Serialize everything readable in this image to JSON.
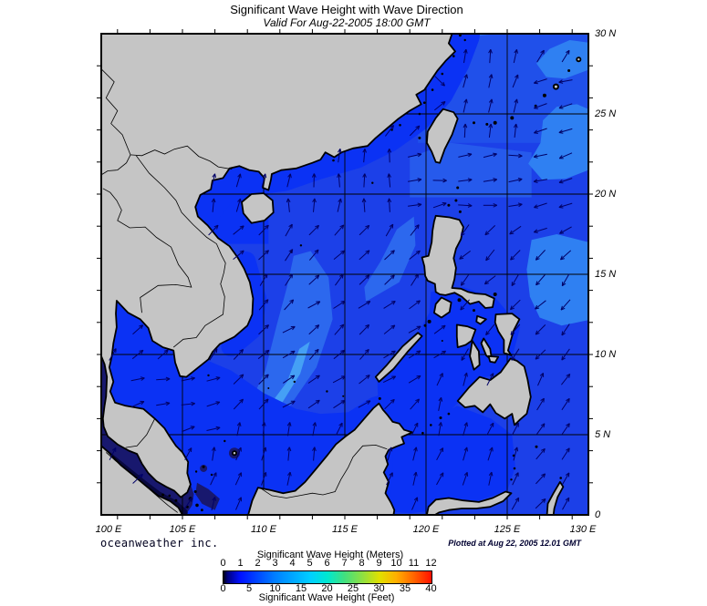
{
  "title": "Significant Wave Height with Wave Direction",
  "subtitle": "Valid For Aug-22-2005 18:00 GMT",
  "branding": "oceanweather inc.",
  "plotted_note": "Plotted at Aug 22, 2005 12.01 GMT",
  "map": {
    "lon_labels": [
      "100 E",
      "105 E",
      "110 E",
      "115 E",
      "120 E",
      "125 E",
      "130 E"
    ],
    "lat_labels": [
      "30 N",
      "25 N",
      "20 N",
      "15 N",
      "10 N",
      "5 N",
      "0"
    ],
    "extent": {
      "lon_min": 100,
      "lon_max": 130,
      "lat_min": 0,
      "lat_max": 30
    },
    "grid_interval_deg": 5,
    "colors": {
      "land": "#c5c5c5",
      "coast": "#000000",
      "border": "#000000",
      "ocean_base": "#1c40e8",
      "ocean_ne": "#2050ea",
      "ocean_strait": "#265aec",
      "wave_bright": "#0b32f4",
      "wave_light": "#2c68ee",
      "wave_lighter": "#2f80f2",
      "wave_streak": "#45a0f5",
      "calm_navy": "#18186e",
      "calm_dark": "#08083e",
      "arrow": "#000066"
    }
  },
  "legend": {
    "meters_label": "Significant Wave Height (Meters)",
    "feet_label": "Significant Wave Height (Feet)",
    "meters_ticks": [
      0,
      1,
      2,
      3,
      4,
      5,
      6,
      7,
      8,
      9,
      10,
      11,
      12
    ],
    "feet_ticks": [
      0,
      5,
      10,
      15,
      20,
      25,
      30,
      35,
      40
    ],
    "gradient": [
      [
        0.0,
        "#000010"
      ],
      [
        0.02,
        "#000080"
      ],
      [
        0.08,
        "#0010ff"
      ],
      [
        0.25,
        "#0080ff"
      ],
      [
        0.42,
        "#00d0ff"
      ],
      [
        0.5,
        "#00e8d0"
      ],
      [
        0.58,
        "#40e080"
      ],
      [
        0.67,
        "#90e040"
      ],
      [
        0.75,
        "#e0e000"
      ],
      [
        0.83,
        "#ffb000"
      ],
      [
        0.92,
        "#ff6000"
      ],
      [
        1.0,
        "#ff1000"
      ]
    ]
  }
}
